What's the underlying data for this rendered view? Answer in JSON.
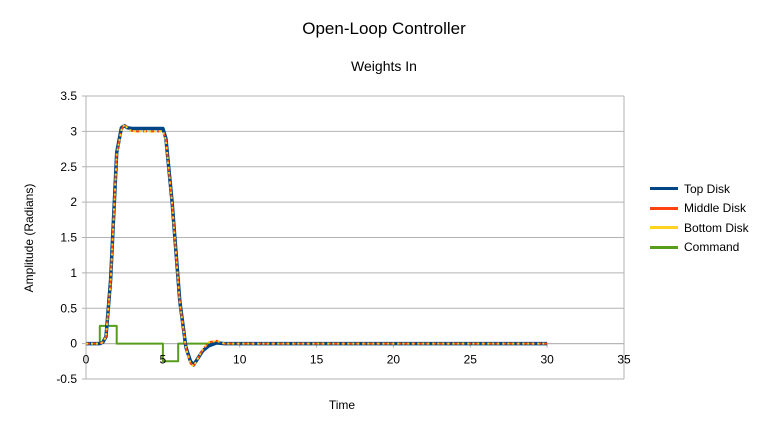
{
  "chart_data": {
    "type": "line",
    "title": "Open-Loop Controller",
    "subtitle": "Weights In",
    "xlabel": "Time",
    "ylabel": "Amplitude (Radians)",
    "xlim": [
      0,
      35
    ],
    "ylim": [
      -0.5,
      3.5
    ],
    "xticks": [
      0,
      5,
      10,
      15,
      20,
      25,
      30,
      35
    ],
    "yticks": [
      -0.5,
      0,
      0.5,
      1,
      1.5,
      2,
      2.5,
      3,
      3.5
    ],
    "grid": "horizontal",
    "legend_position": "right",
    "series": [
      {
        "name": "Top Disk",
        "color": "#004586",
        "width": 3.5,
        "dash": "",
        "x": [
          0,
          0.9,
          1.1,
          1.3,
          1.6,
          2.0,
          2.3,
          2.5,
          2.7,
          3.0,
          5.0,
          5.2,
          5.6,
          6.1,
          6.5,
          6.8,
          7.0,
          7.3,
          7.6,
          8.0,
          8.5,
          9.0,
          10,
          30
        ],
        "y": [
          0,
          0,
          0.02,
          0.1,
          0.9,
          2.7,
          3.05,
          3.08,
          3.05,
          3.04,
          3.04,
          2.9,
          2.0,
          0.6,
          -0.05,
          -0.25,
          -0.3,
          -0.2,
          -0.1,
          -0.03,
          0.01,
          0.0,
          0,
          0
        ]
      },
      {
        "name": "Middle Disk",
        "color": "#ff420e",
        "width": 2,
        "dash": "4,3",
        "x": [
          0,
          0.9,
          1.1,
          1.3,
          1.6,
          2.0,
          2.3,
          2.5,
          2.8,
          3.1,
          5.0,
          5.2,
          5.6,
          6.1,
          6.5,
          6.8,
          7.0,
          7.3,
          7.6,
          8.0,
          8.5,
          9.0,
          10,
          30
        ],
        "y": [
          0,
          0,
          0.02,
          0.1,
          0.88,
          2.68,
          3.02,
          3.1,
          3.02,
          3.0,
          3.0,
          2.88,
          1.98,
          0.58,
          -0.06,
          -0.28,
          -0.32,
          -0.2,
          -0.08,
          0.02,
          0.04,
          0.0,
          0,
          0
        ]
      },
      {
        "name": "Bottom Disk",
        "color": "#ffd320",
        "width": 2,
        "dash": "2,3",
        "x": [
          0,
          0.9,
          1.1,
          1.3,
          1.6,
          2.0,
          2.3,
          2.5,
          2.8,
          3.1,
          5.0,
          5.2,
          5.6,
          6.1,
          6.5,
          6.8,
          7.0,
          7.3,
          7.6,
          8.0,
          8.5,
          9.0,
          10,
          30
        ],
        "y": [
          0,
          0,
          0.02,
          0.1,
          0.88,
          2.68,
          3.02,
          3.1,
          3.02,
          3.0,
          3.0,
          2.88,
          1.98,
          0.58,
          -0.06,
          -0.28,
          -0.32,
          -0.2,
          -0.08,
          0.02,
          0.04,
          0.0,
          0,
          0
        ]
      },
      {
        "name": "Command",
        "color": "#579d1c",
        "width": 2,
        "dash": "",
        "x": [
          0,
          0.9,
          0.9,
          2.0,
          2.0,
          5.0,
          5.0,
          6.0,
          6.0,
          10,
          30
        ],
        "y": [
          0,
          0,
          0.25,
          0.25,
          0,
          0,
          -0.25,
          -0.25,
          0,
          0,
          0
        ]
      }
    ]
  }
}
